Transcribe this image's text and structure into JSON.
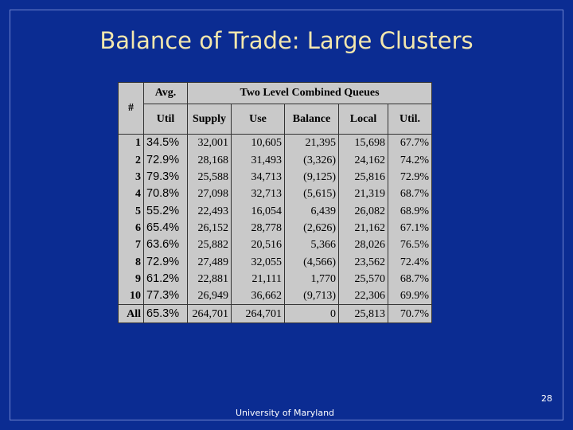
{
  "title": "Balance of Trade: Large Clusters",
  "table": {
    "header": {
      "index": "#",
      "avg_top": "Avg.",
      "avg_bottom": "Util",
      "group": "Two Level Combined Queues",
      "columns": [
        "Supply",
        "Use",
        "Balance",
        "Local",
        "Util."
      ]
    },
    "rows": [
      [
        "1",
        "34.5%",
        "32,001",
        "10,605",
        "21,395",
        "15,698",
        "67.7%"
      ],
      [
        "2",
        "72.9%",
        "28,168",
        "31,493",
        "(3,326)",
        "24,162",
        "74.2%"
      ],
      [
        "3",
        "79.3%",
        "25,588",
        "34,713",
        "(9,125)",
        "25,816",
        "72.9%"
      ],
      [
        "4",
        "70.8%",
        "27,098",
        "32,713",
        "(5,615)",
        "21,319",
        "68.7%"
      ],
      [
        "5",
        "55.2%",
        "22,493",
        "16,054",
        "6,439",
        "26,082",
        "68.9%"
      ],
      [
        "6",
        "65.4%",
        "26,152",
        "28,778",
        "(2,626)",
        "21,162",
        "67.1%"
      ],
      [
        "7",
        "63.6%",
        "25,882",
        "20,516",
        "5,366",
        "28,026",
        "76.5%"
      ],
      [
        "8",
        "72.9%",
        "27,489",
        "32,055",
        "(4,566)",
        "23,562",
        "72.4%"
      ],
      [
        "9",
        "61.2%",
        "22,881",
        "21,111",
        "1,770",
        "25,570",
        "68.7%"
      ],
      [
        "10",
        "77.3%",
        "26,949",
        "36,662",
        "(9,713)",
        "22,306",
        "69.9%"
      ],
      [
        "All",
        "65.3%",
        "264,701",
        "264,701",
        "0",
        "25,813",
        "70.7%"
      ]
    ]
  },
  "footer": "University of Maryland",
  "page_number": "28"
}
